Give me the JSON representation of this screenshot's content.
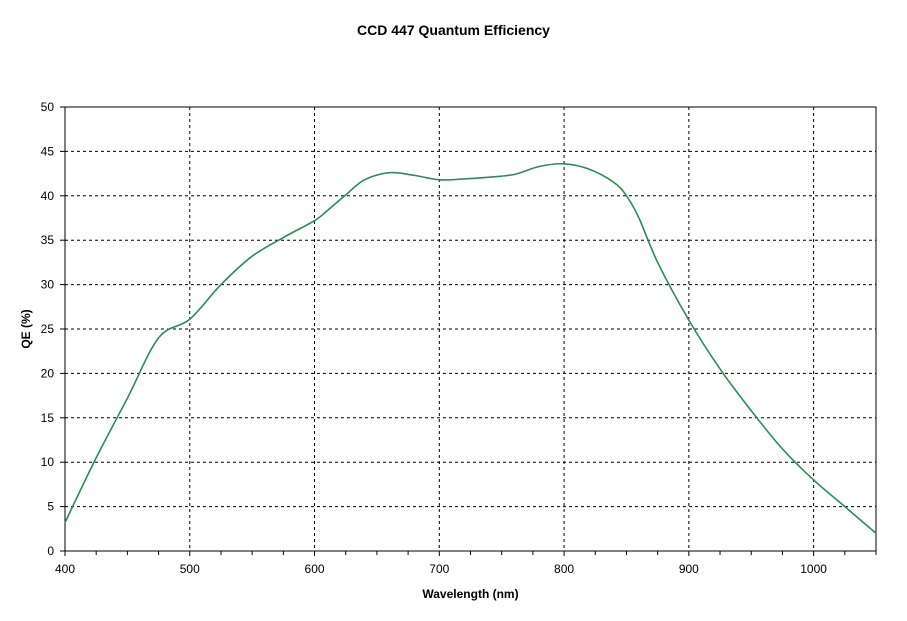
{
  "chart_data": {
    "type": "line",
    "title": "CCD 447 Quantum Efficiency",
    "xlabel": "Wavelength (nm)",
    "ylabel": "QE (%)",
    "xlim": [
      400,
      1050
    ],
    "ylim": [
      0,
      50
    ],
    "x_ticks": [
      400,
      500,
      600,
      700,
      800,
      900,
      1000
    ],
    "y_ticks": [
      0,
      5,
      10,
      15,
      20,
      25,
      30,
      35,
      40,
      45,
      50
    ],
    "grid": true,
    "line_color": "#2e8b57",
    "series": [
      {
        "x": [
          400,
          425,
          450,
          475,
          500,
          525,
          550,
          575,
          600,
          610,
          625,
          640,
          660,
          680,
          700,
          720,
          740,
          760,
          780,
          800,
          820,
          840,
          850,
          860,
          875,
          900,
          925,
          950,
          975,
          1000,
          1025,
          1050
        ],
        "y": [
          3.2,
          10.5,
          17.2,
          24.0,
          26.1,
          30.0,
          33.2,
          35.3,
          37.2,
          38.3,
          40.1,
          41.8,
          42.6,
          42.3,
          41.8,
          41.9,
          42.1,
          42.4,
          43.3,
          43.6,
          43.0,
          41.5,
          40.0,
          37.5,
          32.5,
          26.0,
          20.5,
          15.8,
          11.5,
          8.0,
          5.0,
          2.0
        ]
      }
    ]
  }
}
